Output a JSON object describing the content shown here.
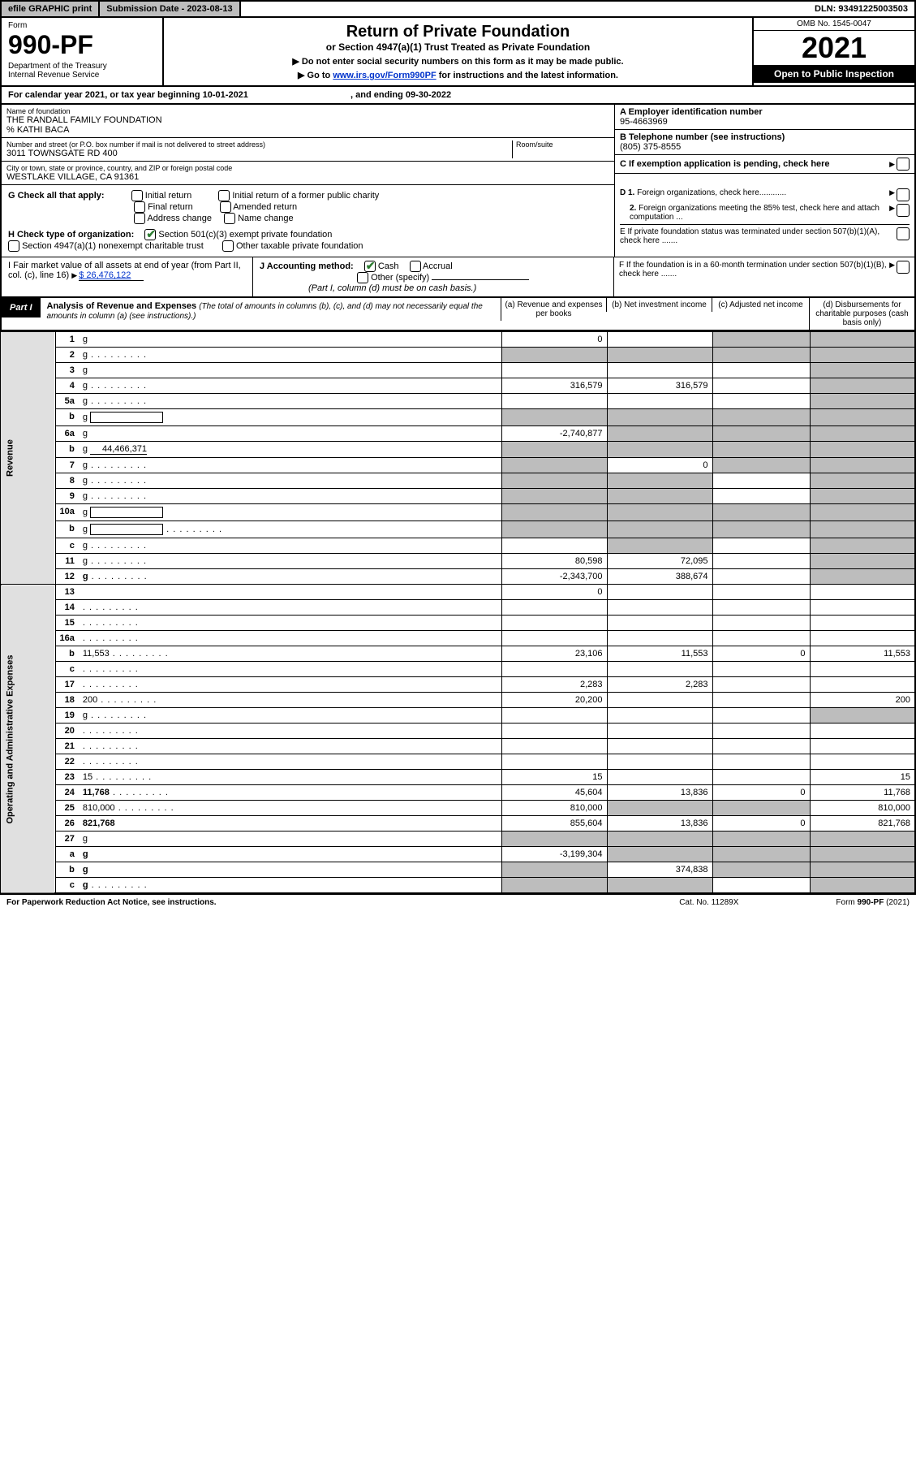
{
  "topbar": {
    "efile": "efile GRAPHIC print",
    "subdate_label": "Submission Date - 2023-08-13",
    "dln": "DLN: 93491225003503"
  },
  "header": {
    "form": "Form",
    "formno": "990-PF",
    "dept": "Department of the Treasury\nInternal Revenue Service",
    "title": "Return of Private Foundation",
    "sub1": "or Section 4947(a)(1) Trust Treated as Private Foundation",
    "sub2a": "▶ Do not enter social security numbers on this form as it may be made public.",
    "sub2b": "▶ Go to ",
    "sub2b_link": "www.irs.gov/Form990PF",
    "sub2c": " for instructions and the latest information.",
    "omb": "OMB No. 1545-0047",
    "year": "2021",
    "open": "Open to Public Inspection"
  },
  "calyear": {
    "text_a": "For calendar year 2021, or tax year beginning 10-01-2021",
    "text_b": ", and ending 09-30-2022"
  },
  "info": {
    "name_lbl": "Name of foundation",
    "name": "THE RANDALL FAMILY FOUNDATION",
    "care": "% KATHI BACA",
    "addr_lbl": "Number and street (or P.O. box number if mail is not delivered to street address)",
    "addr": "3011 TOWNSGATE RD 400",
    "room_lbl": "Room/suite",
    "city_lbl": "City or town, state or province, country, and ZIP or foreign postal code",
    "city": "WESTLAKE VILLAGE, CA  91361",
    "A_lbl": "A Employer identification number",
    "A_val": "95-4663969",
    "B_lbl": "B Telephone number (see instructions)",
    "B_val": "(805) 375-8555",
    "C_lbl": "C If exemption application is pending, check here",
    "D1": "D 1. Foreign organizations, check here............",
    "D2": "2. Foreign organizations meeting the 85% test, check here and attach computation ...",
    "E": "E  If private foundation status was terminated under section 507(b)(1)(A), check here .......",
    "F": "F  If the foundation is in a 60-month termination under section 507(b)(1)(B), check here .......",
    "G": "G Check all that apply:",
    "G_opts": [
      "Initial return",
      "Final return",
      "Address change",
      "Initial return of a former public charity",
      "Amended return",
      "Name change"
    ],
    "H": "H Check type of organization:",
    "H1": "Section 501(c)(3) exempt private foundation",
    "H2": "Section 4947(a)(1) nonexempt charitable trust",
    "H3": "Other taxable private foundation",
    "I": "I Fair market value of all assets at end of year (from Part II, col. (c), line 16)",
    "I_val": "$  26,476,122",
    "J": "J Accounting method:",
    "J_cash": "Cash",
    "J_accrual": "Accrual",
    "J_other": "Other (specify)",
    "J_note": "(Part I, column (d) must be on cash basis.)"
  },
  "part1": {
    "tab": "Part I",
    "title": "Analysis of Revenue and Expenses",
    "title_note": "(The total of amounts in columns (b), (c), and (d) may not necessarily equal the amounts in column (a) (see instructions).)",
    "col_a": "(a)   Revenue and expenses per books",
    "col_b": "(b)   Net investment income",
    "col_c": "(c)   Adjusted net income",
    "col_d": "(d)   Disbursements for charitable purposes (cash basis only)",
    "side_rev": "Revenue",
    "side_exp": "Operating and Administrative Expenses"
  },
  "rows": [
    {
      "n": "1",
      "d": "g",
      "a": "0",
      "b": "",
      "c": "g"
    },
    {
      "n": "2",
      "d": "g",
      "dots": true,
      "a": "g",
      "b": "g",
      "c": "g"
    },
    {
      "n": "3",
      "d": "g",
      "a": "",
      "b": "",
      "c": ""
    },
    {
      "n": "4",
      "d": "g",
      "dots": true,
      "a": "316,579",
      "b": "316,579",
      "c": ""
    },
    {
      "n": "5a",
      "d": "g",
      "dots": true,
      "a": "",
      "b": "",
      "c": ""
    },
    {
      "n": "b",
      "d": "g",
      "box": true,
      "a": "g",
      "b": "g",
      "c": "g"
    },
    {
      "n": "6a",
      "d": "g",
      "a": "-2,740,877",
      "b": "g",
      "c": "g"
    },
    {
      "n": "b",
      "d": "g",
      "ul": "44,466,371",
      "a": "g",
      "b": "g",
      "c": "g"
    },
    {
      "n": "7",
      "d": "g",
      "dots": true,
      "a": "g",
      "b": "0",
      "c": "g"
    },
    {
      "n": "8",
      "d": "g",
      "dots": true,
      "a": "g",
      "b": "g",
      "c": ""
    },
    {
      "n": "9",
      "d": "g",
      "dots": true,
      "a": "g",
      "b": "g",
      "c": ""
    },
    {
      "n": "10a",
      "d": "g",
      "box": true,
      "a": "g",
      "b": "g",
      "c": "g"
    },
    {
      "n": "b",
      "d": "g",
      "dots": true,
      "box": true,
      "a": "g",
      "b": "g",
      "c": "g"
    },
    {
      "n": "c",
      "d": "g",
      "dots": true,
      "a": "",
      "b": "g",
      "c": ""
    },
    {
      "n": "11",
      "d": "g",
      "dots": true,
      "a": "80,598",
      "b": "72,095",
      "c": ""
    },
    {
      "n": "12",
      "d": "g",
      "bold": true,
      "dots": true,
      "a": "-2,343,700",
      "b": "388,674",
      "c": ""
    },
    {
      "n": "13",
      "d": "",
      "a": "0",
      "b": "",
      "c": ""
    },
    {
      "n": "14",
      "d": "",
      "dots": true,
      "a": "",
      "b": "",
      "c": ""
    },
    {
      "n": "15",
      "d": "",
      "dots": true,
      "a": "",
      "b": "",
      "c": ""
    },
    {
      "n": "16a",
      "d": "",
      "dots": true,
      "a": "",
      "b": "",
      "c": ""
    },
    {
      "n": "b",
      "d": "11,553",
      "dots": true,
      "a": "23,106",
      "b": "11,553",
      "c": "0"
    },
    {
      "n": "c",
      "d": "",
      "dots": true,
      "a": "",
      "b": "",
      "c": ""
    },
    {
      "n": "17",
      "d": "",
      "dots": true,
      "a": "2,283",
      "b": "2,283",
      "c": ""
    },
    {
      "n": "18",
      "d": "200",
      "dots": true,
      "a": "20,200",
      "b": "",
      "c": ""
    },
    {
      "n": "19",
      "d": "g",
      "dots": true,
      "a": "",
      "b": "",
      "c": ""
    },
    {
      "n": "20",
      "d": "",
      "dots": true,
      "a": "",
      "b": "",
      "c": ""
    },
    {
      "n": "21",
      "d": "",
      "dots": true,
      "a": "",
      "b": "",
      "c": ""
    },
    {
      "n": "22",
      "d": "",
      "dots": true,
      "a": "",
      "b": "",
      "c": ""
    },
    {
      "n": "23",
      "d": "15",
      "dots": true,
      "a": "15",
      "b": "",
      "c": ""
    },
    {
      "n": "24",
      "d": "11,768",
      "bold": true,
      "dots": true,
      "a": "45,604",
      "b": "13,836",
      "c": "0"
    },
    {
      "n": "25",
      "d": "810,000",
      "dots": true,
      "a": "810,000",
      "b": "g",
      "c": "g"
    },
    {
      "n": "26",
      "d": "821,768",
      "bold": true,
      "a": "855,604",
      "b": "13,836",
      "c": "0"
    },
    {
      "n": "27",
      "d": "g",
      "a": "g",
      "b": "g",
      "c": "g"
    },
    {
      "n": "a",
      "d": "g",
      "bold": true,
      "a": "-3,199,304",
      "b": "g",
      "c": "g"
    },
    {
      "n": "b",
      "d": "g",
      "bold": true,
      "a": "g",
      "b": "374,838",
      "c": "g"
    },
    {
      "n": "c",
      "d": "g",
      "bold": true,
      "dots": true,
      "a": "g",
      "b": "g",
      "c": ""
    }
  ],
  "footer": {
    "left": "For Paperwork Reduction Act Notice, see instructions.",
    "mid": "Cat. No. 11289X",
    "right": "Form 990-PF (2021)"
  },
  "colors": {
    "grey": "#bdbdbd",
    "link": "#0033cc",
    "check": "#2e7d32"
  }
}
